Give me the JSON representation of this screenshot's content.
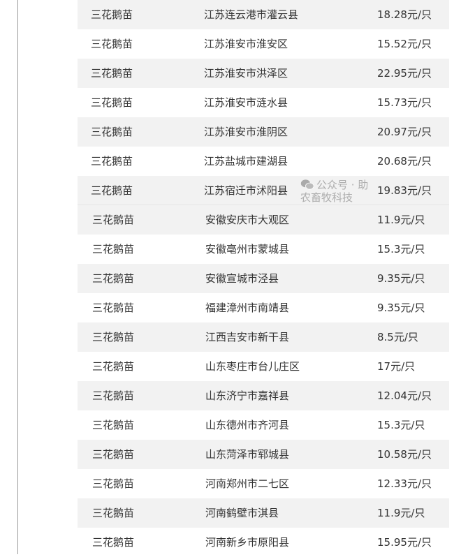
{
  "table1": [
    {
      "name": "三花鹅苗",
      "region": "江苏连云港市灌云县",
      "price": "18.28元/只"
    },
    {
      "name": "三花鹅苗",
      "region": "江苏淮安市淮安区",
      "price": "15.52元/只"
    },
    {
      "name": "三花鹅苗",
      "region": "江苏淮安市洪泽区",
      "price": "22.95元/只"
    },
    {
      "name": "三花鹅苗",
      "region": "江苏淮安市涟水县",
      "price": "15.73元/只"
    },
    {
      "name": "三花鹅苗",
      "region": "江苏淮安市淮阴区",
      "price": "20.97元/只"
    },
    {
      "name": "三花鹅苗",
      "region": "江苏盐城市建湖县",
      "price": "20.68元/只"
    },
    {
      "name": "三花鹅苗",
      "region": "江苏宿迁市沭阳县",
      "price": "19.83元/只"
    }
  ],
  "table2": [
    {
      "name": "三花鹅苗",
      "region": "安徽安庆市大观区",
      "price": "11.9元/只"
    },
    {
      "name": "三花鹅苗",
      "region": "安徽亳州市蒙城县",
      "price": "15.3元/只"
    },
    {
      "name": "三花鹅苗",
      "region": "安徽宣城市泾县",
      "price": "9.35元/只"
    },
    {
      "name": "三花鹅苗",
      "region": "福建漳州市南靖县",
      "price": "9.35元/只"
    },
    {
      "name": "三花鹅苗",
      "region": "江西吉安市新干县",
      "price": "8.5元/只"
    },
    {
      "name": "三花鹅苗",
      "region": "山东枣庄市台儿庄区",
      "price": "17元/只"
    },
    {
      "name": "三花鹅苗",
      "region": "山东济宁市嘉祥县",
      "price": "12.04元/只"
    },
    {
      "name": "三花鹅苗",
      "region": "山东德州市齐河县",
      "price": "15.3元/只"
    },
    {
      "name": "三花鹅苗",
      "region": "山东菏泽市郓城县",
      "price": "10.58元/只"
    },
    {
      "name": "三花鹅苗",
      "region": "河南郑州市二七区",
      "price": "12.33元/只"
    },
    {
      "name": "三花鹅苗",
      "region": "河南鹤壁市淇县",
      "price": "11.9元/只"
    },
    {
      "name": "三花鹅苗",
      "region": "河南新乡市原阳县",
      "price": "15.95元/只"
    }
  ],
  "watermark": {
    "icon": "wechat-icon",
    "text": "公众号 · 助农畜牧科技"
  }
}
